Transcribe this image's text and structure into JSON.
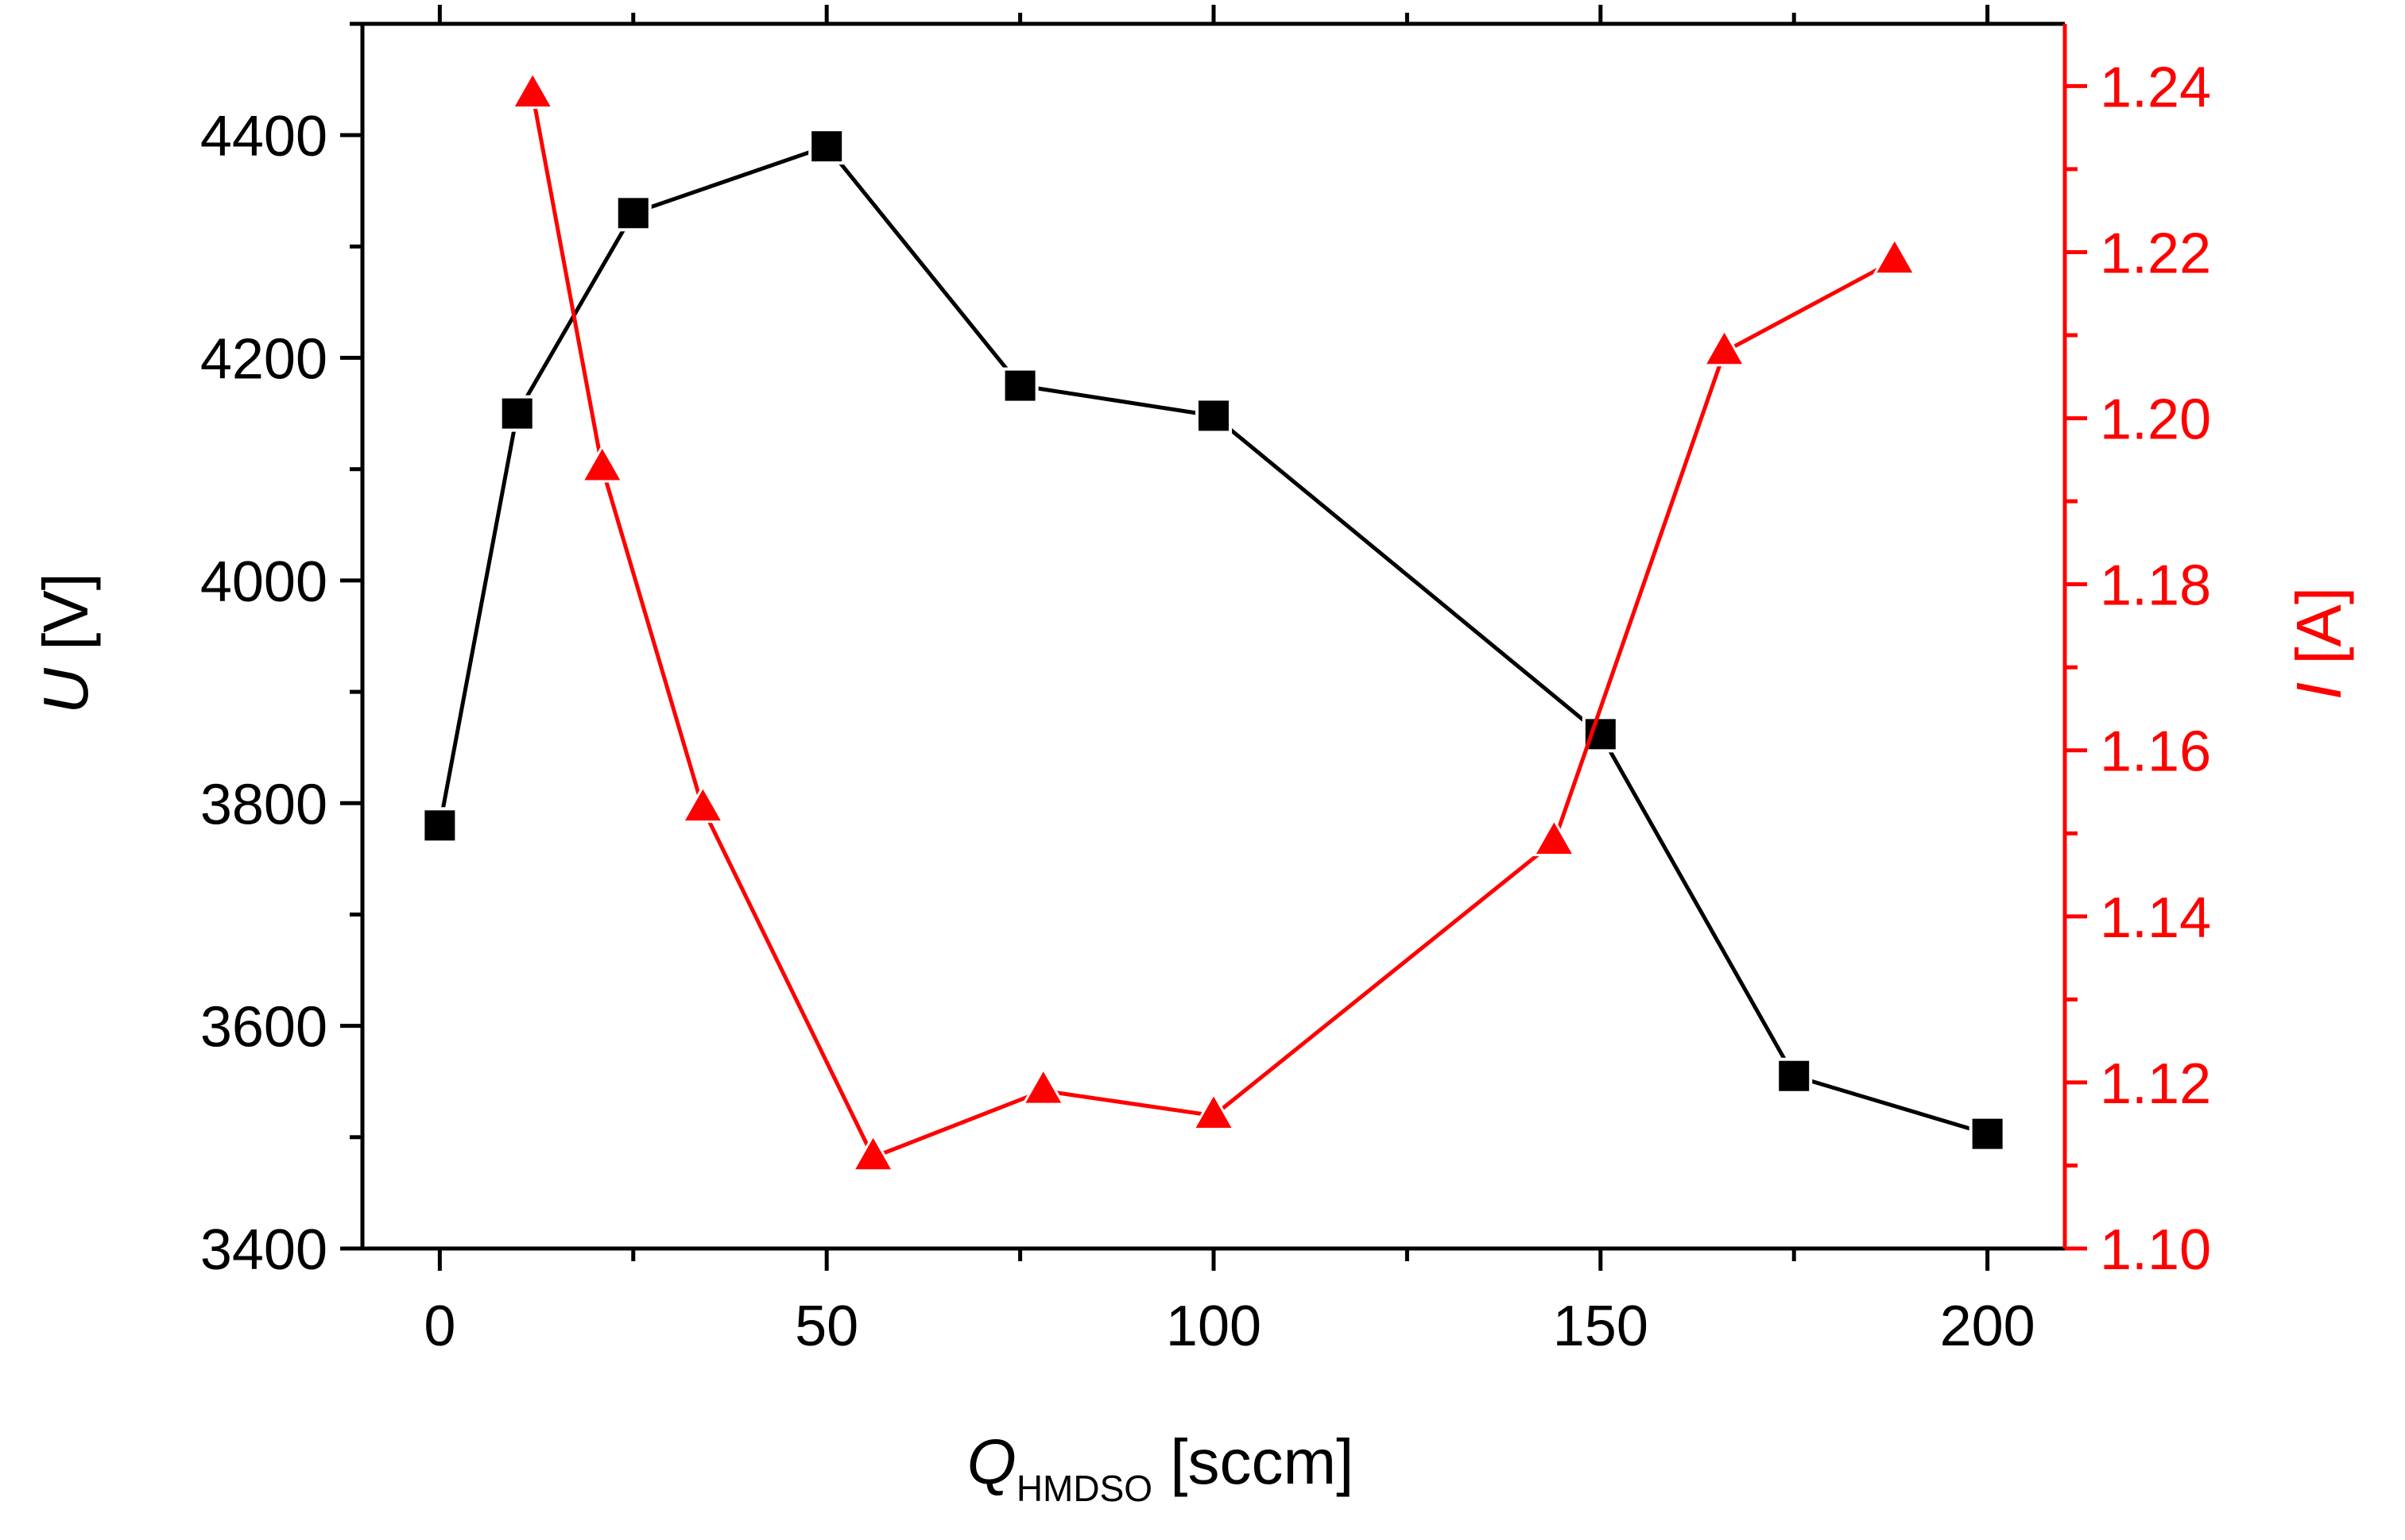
{
  "chart_data": {
    "type": "line",
    "x_axis": {
      "symbol": "Q",
      "subscript": "HMDSO",
      "unit": "[sccm]",
      "range": [
        -10,
        210
      ],
      "ticks": [
        0,
        50,
        100,
        150,
        200
      ],
      "tick_labels": [
        "0",
        "50",
        "100",
        "150",
        "200"
      ]
    },
    "y_left": {
      "symbol": "U",
      "unit": "[V]",
      "range": [
        3400,
        4500
      ],
      "ticks": [
        3400,
        3600,
        3800,
        4000,
        4200,
        4400
      ],
      "tick_labels": [
        "3400",
        "3600",
        "3800",
        "4000",
        "4200",
        "4400"
      ],
      "color": "#000000"
    },
    "y_right": {
      "symbol": "I",
      "unit": "[A]",
      "range": [
        1.1,
        1.2475
      ],
      "ticks": [
        1.1,
        1.12,
        1.14,
        1.16,
        1.18,
        1.2,
        1.22,
        1.24
      ],
      "tick_labels": [
        "1.10",
        "1.12",
        "1.14",
        "1.16",
        "1.18",
        "1.20",
        "1.22",
        "1.24"
      ],
      "color": "#ff0000"
    },
    "series": [
      {
        "name": "U",
        "axis": "left",
        "marker": "square",
        "color": "#000000",
        "x": [
          0,
          10,
          25,
          50,
          75,
          100,
          150,
          175,
          200
        ],
        "y": [
          3780,
          4150,
          4330,
          4390,
          4175,
          4148,
          3862,
          3555,
          3503
        ]
      },
      {
        "name": "I",
        "axis": "right",
        "marker": "triangle",
        "color": "#ff0000",
        "x": [
          12,
          21,
          34,
          56,
          78,
          100,
          144,
          166,
          188
        ],
        "y": [
          1.239,
          1.194,
          1.153,
          1.111,
          1.119,
          1.116,
          1.149,
          1.208,
          1.219
        ]
      }
    ]
  }
}
